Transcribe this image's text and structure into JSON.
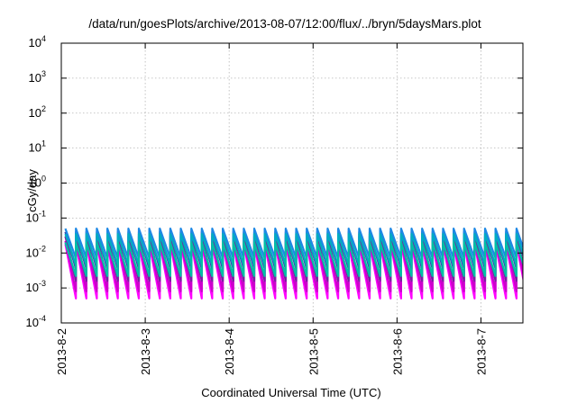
{
  "chart_data": {
    "type": "line",
    "title": "/data/run/goesPlots/archive/2013-08-07/12:00/flux/../bryn/5daysMars.plot",
    "xlabel": "Coordinated Universal Time (UTC)",
    "ylabel": "cGy/day",
    "y_scale": "log",
    "ylim": [
      0.0001,
      10000
    ],
    "y_ticks": [
      {
        "value": 0.0001,
        "base": "10",
        "exp": "-4"
      },
      {
        "value": 0.001,
        "base": "10",
        "exp": "-3"
      },
      {
        "value": 0.01,
        "base": "10",
        "exp": "-2"
      },
      {
        "value": 0.1,
        "base": "10",
        "exp": "-1"
      },
      {
        "value": 1,
        "base": "10",
        "exp": "0"
      },
      {
        "value": 10,
        "base": "10",
        "exp": "1"
      },
      {
        "value": 100,
        "base": "10",
        "exp": "2"
      },
      {
        "value": 1000,
        "base": "10",
        "exp": "3"
      },
      {
        "value": 10000,
        "base": "10",
        "exp": "4"
      }
    ],
    "xlim": [
      "2013-08-02",
      "2013-08-07 12:00"
    ],
    "x_ticks": [
      "2013-8-2",
      "2013-8-3",
      "2013-8-4",
      "2013-8-5",
      "2013-8-6",
      "2013-8-7"
    ],
    "grid": true,
    "sawtooth_period_hours": 3,
    "series": [
      {
        "color": "#ff00ff",
        "peak": 0.018,
        "trough": 0.0005
      },
      {
        "color": "#cc00cc",
        "peak": 0.022,
        "trough": 0.0008
      },
      {
        "color": "#7b1fa2",
        "peak": 0.03,
        "trough": 0.0016
      },
      {
        "color": "#3949ab",
        "peak": 0.04,
        "trough": 0.0035
      },
      {
        "color": "#1e88e5",
        "peak": 0.05,
        "trough": 0.007
      },
      {
        "color": "#00acc1",
        "peak": 0.035,
        "trough": 0.0045
      },
      {
        "color": "#00bfa5",
        "peak": 0.02,
        "trough": 0.0022
      }
    ]
  }
}
